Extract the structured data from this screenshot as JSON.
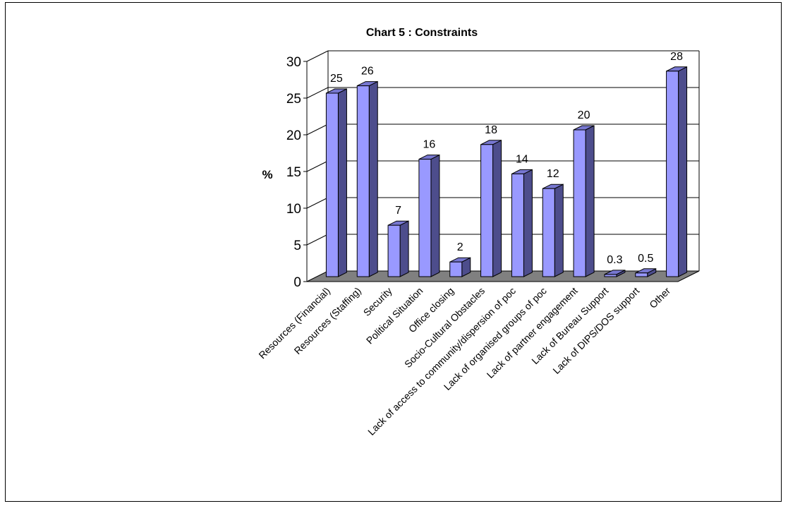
{
  "chart_data": {
    "type": "bar",
    "title": "Chart 5 : Constraints",
    "ylabel": "%",
    "xlabel": "",
    "ylim": [
      0,
      30
    ],
    "yticks": [
      0,
      5,
      10,
      15,
      20,
      25,
      30
    ],
    "grid": true,
    "categories": [
      "Resources (Financial)",
      "Resources (Staffing)",
      "Security",
      "Political Situation",
      "Office closing",
      "Socio-Cultural Obstacles",
      "Lack of access to community/dispersion of poc",
      "Lack of organised groups of poc",
      "Lack of partner engagement",
      "Lack of Bureau Support",
      "Lack of DIPS/DOS support",
      "Other"
    ],
    "values": [
      25,
      26,
      7,
      16,
      2,
      18,
      14,
      12,
      20,
      0.3,
      0.5,
      28
    ],
    "data_labels": [
      "25",
      "26",
      "7",
      "16",
      "2",
      "18",
      "14",
      "12",
      "20",
      "0.3",
      "0.5",
      "28"
    ],
    "colors": {
      "bar_front": "#9999FF",
      "bar_side": "#4D4D8C",
      "bar_top": "#7777D0",
      "floor": "#808080",
      "grid": "#000000"
    }
  }
}
